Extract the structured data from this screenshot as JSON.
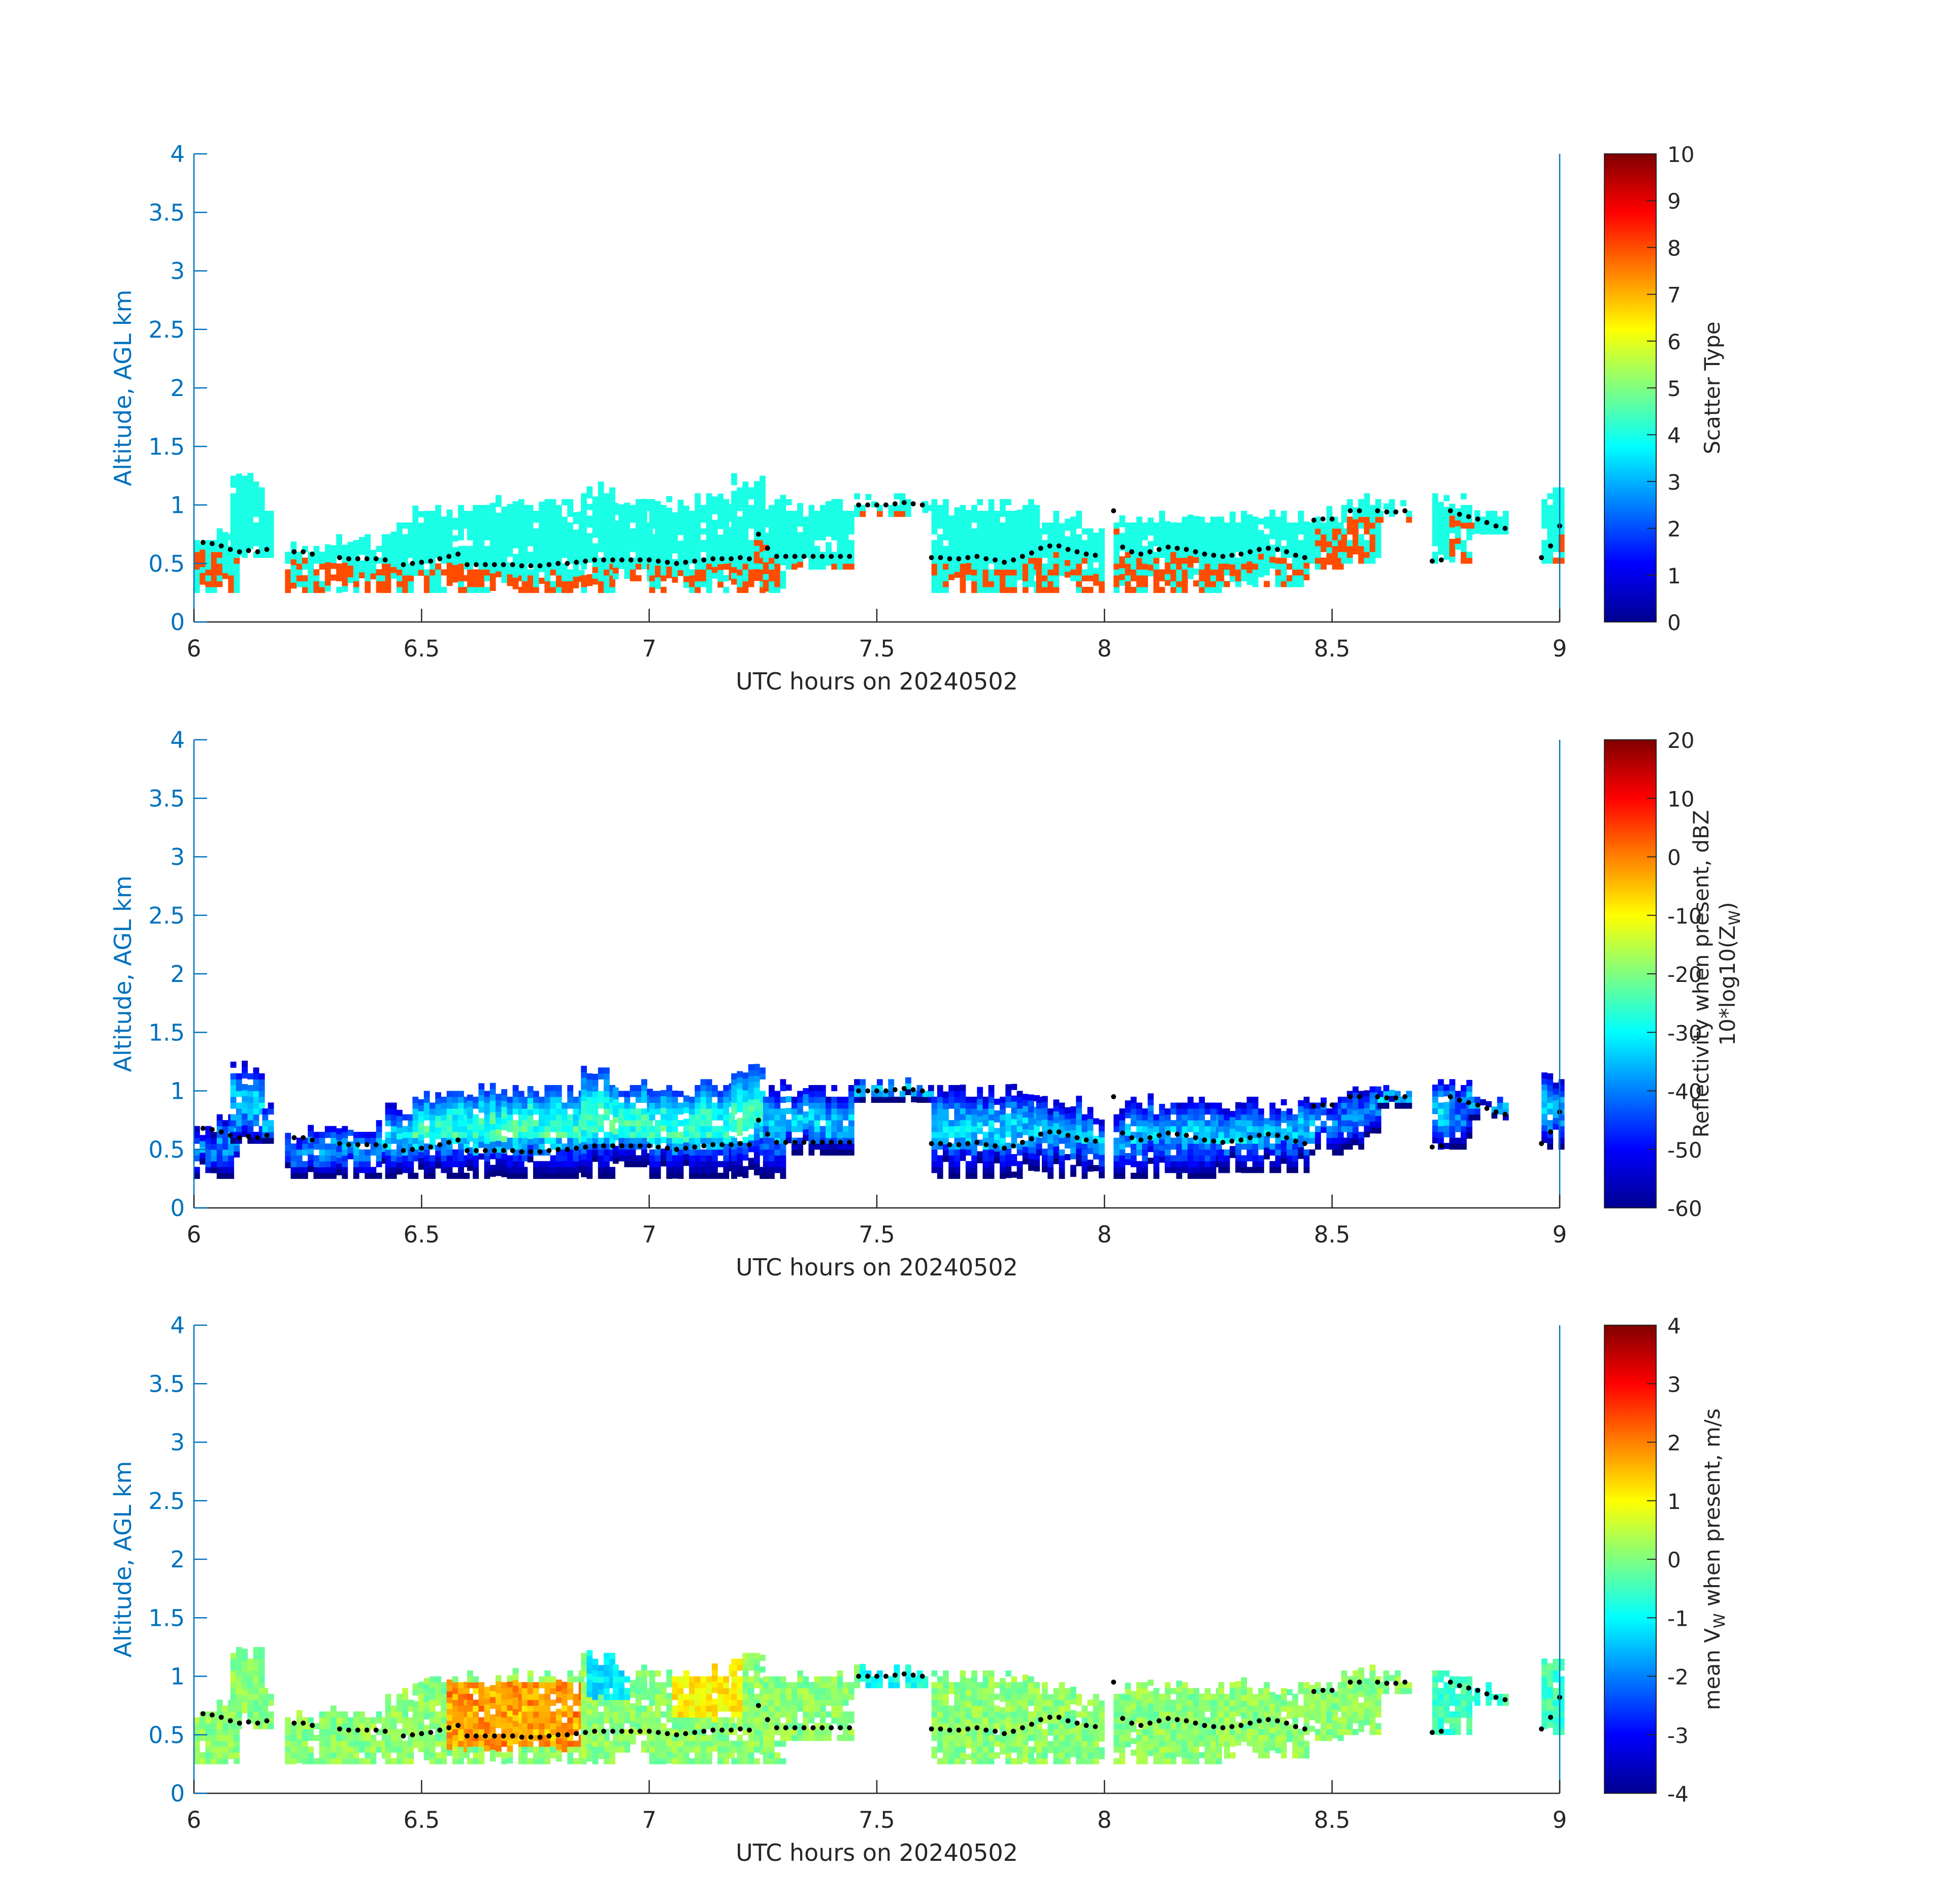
{
  "figure": {
    "background": "#ffffff",
    "axis_color": "#0072bd",
    "colormap": "jet"
  },
  "chart_data": [
    {
      "type": "heatmap",
      "title": "",
      "xlabel": "UTC hours on 20240502",
      "ylabel": "Altitude, AGL km",
      "xlim": [
        6,
        9
      ],
      "ylim": [
        0,
        4
      ],
      "xticks": [
        6,
        6.5,
        7,
        7.5,
        8,
        8.5,
        9
      ],
      "xtick_labels": [
        "6",
        "6.5",
        "7",
        "7.5",
        "8",
        "8.5",
        "9"
      ],
      "yticks": [
        0,
        0.5,
        1,
        1.5,
        2,
        2.5,
        3,
        3.5,
        4
      ],
      "ytick_labels": [
        "0",
        "0.5",
        "1",
        "1.5",
        "2",
        "2.5",
        "3",
        "3.5",
        "4"
      ],
      "colorbar": {
        "label": "Scatter Type",
        "range": [
          0,
          10
        ],
        "ticks": [
          0,
          1,
          2,
          3,
          4,
          5,
          6,
          7,
          8,
          9,
          10
        ],
        "tick_labels": [
          "0",
          "1",
          "2",
          "3",
          "4",
          "5",
          "6",
          "7",
          "8",
          "9",
          "10"
        ]
      },
      "field": "scatter_type",
      "note_values": "cloud body value ~4 (cyan), precipitation/base value ~8 (orange-red)"
    },
    {
      "type": "heatmap",
      "title": "",
      "xlabel": "UTC hours on 20240502",
      "ylabel": "Altitude, AGL km",
      "xlim": [
        6,
        9
      ],
      "ylim": [
        0,
        4
      ],
      "xticks": [
        6,
        6.5,
        7,
        7.5,
        8,
        8.5,
        9
      ],
      "xtick_labels": [
        "6",
        "6.5",
        "7",
        "7.5",
        "8",
        "8.5",
        "9"
      ],
      "yticks": [
        0,
        0.5,
        1,
        1.5,
        2,
        2.5,
        3,
        3.5,
        4
      ],
      "ytick_labels": [
        "0",
        "0.5",
        "1",
        "1.5",
        "2",
        "2.5",
        "3",
        "3.5",
        "4"
      ],
      "colorbar": {
        "label": "Reflectivity when present, dBZ",
        "label2_main": "10*log10(Z",
        "label2_sub": "W",
        "label2_tail": ")",
        "range": [
          -60,
          20
        ],
        "ticks": [
          -60,
          -50,
          -40,
          -30,
          -20,
          -10,
          0,
          10,
          20
        ],
        "tick_labels": [
          "-60",
          "-50",
          "-40",
          "-30",
          "-20",
          "-10",
          "0",
          "10",
          "20"
        ]
      },
      "field": "reflectivity_dbz"
    },
    {
      "type": "heatmap",
      "title": "",
      "xlabel": "UTC hours on 20240502",
      "ylabel": "Altitude, AGL km",
      "xlim": [
        6,
        9
      ],
      "ylim": [
        0,
        4
      ],
      "xticks": [
        6,
        6.5,
        7,
        7.5,
        8,
        8.5,
        9
      ],
      "xtick_labels": [
        "6",
        "6.5",
        "7",
        "7.5",
        "8",
        "8.5",
        "9"
      ],
      "yticks": [
        0,
        0.5,
        1,
        1.5,
        2,
        2.5,
        3,
        3.5,
        4
      ],
      "ytick_labels": [
        "0",
        "0.5",
        "1",
        "1.5",
        "2",
        "2.5",
        "3",
        "3.5",
        "4"
      ],
      "colorbar": {
        "label_main": "mean V",
        "label_sub": "W",
        "label_tail": " when present, m/s",
        "range": [
          -4,
          4
        ],
        "ticks": [
          -4,
          -3,
          -2,
          -1,
          0,
          1,
          2,
          3,
          4
        ],
        "tick_labels": [
          "-4",
          "-3",
          "-2",
          "-1",
          "0",
          "1",
          "2",
          "3",
          "4"
        ]
      },
      "field": "mean_vw"
    }
  ],
  "cloud_base_dots": {
    "description": "black dotted line of cloud base altitude (km) vs UTC hour, same on all panels",
    "points": [
      [
        6.02,
        0.68
      ],
      [
        6.04,
        0.67
      ],
      [
        6.06,
        0.65
      ],
      [
        6.08,
        0.62
      ],
      [
        6.1,
        0.6
      ],
      [
        6.12,
        0.61
      ],
      [
        6.14,
        0.6
      ],
      [
        6.16,
        0.62
      ],
      [
        6.22,
        0.6
      ],
      [
        6.24,
        0.6
      ],
      [
        6.26,
        0.58
      ],
      [
        6.32,
        0.55
      ],
      [
        6.34,
        0.54
      ],
      [
        6.36,
        0.54
      ],
      [
        6.38,
        0.54
      ],
      [
        6.4,
        0.54
      ],
      [
        6.42,
        0.53
      ],
      [
        6.46,
        0.49
      ],
      [
        6.48,
        0.5
      ],
      [
        6.5,
        0.51
      ],
      [
        6.52,
        0.52
      ],
      [
        6.54,
        0.54
      ],
      [
        6.56,
        0.56
      ],
      [
        6.58,
        0.58
      ],
      [
        6.6,
        0.49
      ],
      [
        6.62,
        0.49
      ],
      [
        6.64,
        0.49
      ],
      [
        6.66,
        0.49
      ],
      [
        6.68,
        0.49
      ],
      [
        6.7,
        0.49
      ],
      [
        6.72,
        0.48
      ],
      [
        6.74,
        0.48
      ],
      [
        6.76,
        0.48
      ],
      [
        6.78,
        0.49
      ],
      [
        6.8,
        0.5
      ],
      [
        6.82,
        0.5
      ],
      [
        6.84,
        0.51
      ],
      [
        6.86,
        0.52
      ],
      [
        6.88,
        0.53
      ],
      [
        6.9,
        0.53
      ],
      [
        6.92,
        0.53
      ],
      [
        6.94,
        0.53
      ],
      [
        6.96,
        0.53
      ],
      [
        6.98,
        0.53
      ],
      [
        7.0,
        0.53
      ],
      [
        7.02,
        0.52
      ],
      [
        7.04,
        0.51
      ],
      [
        7.06,
        0.5
      ],
      [
        7.08,
        0.51
      ],
      [
        7.1,
        0.52
      ],
      [
        7.12,
        0.53
      ],
      [
        7.14,
        0.54
      ],
      [
        7.16,
        0.54
      ],
      [
        7.18,
        0.54
      ],
      [
        7.2,
        0.55
      ],
      [
        7.22,
        0.54
      ],
      [
        7.24,
        0.75
      ],
      [
        7.26,
        0.63
      ],
      [
        7.28,
        0.56
      ],
      [
        7.3,
        0.56
      ],
      [
        7.32,
        0.56
      ],
      [
        7.34,
        0.56
      ],
      [
        7.36,
        0.56
      ],
      [
        7.38,
        0.56
      ],
      [
        7.4,
        0.56
      ],
      [
        7.42,
        0.56
      ],
      [
        7.44,
        0.56
      ],
      [
        7.46,
        1.0
      ],
      [
        7.48,
        1.0
      ],
      [
        7.5,
        1.0
      ],
      [
        7.52,
        1.0
      ],
      [
        7.54,
        1.01
      ],
      [
        7.56,
        1.02
      ],
      [
        7.58,
        1.01
      ],
      [
        7.6,
        1.0
      ],
      [
        7.62,
        0.55
      ],
      [
        7.64,
        0.55
      ],
      [
        7.66,
        0.54
      ],
      [
        7.68,
        0.54
      ],
      [
        7.7,
        0.55
      ],
      [
        7.72,
        0.56
      ],
      [
        7.74,
        0.54
      ],
      [
        7.76,
        0.53
      ],
      [
        7.78,
        0.51
      ],
      [
        7.8,
        0.53
      ],
      [
        7.82,
        0.56
      ],
      [
        7.84,
        0.59
      ],
      [
        7.86,
        0.63
      ],
      [
        7.88,
        0.65
      ],
      [
        7.9,
        0.65
      ],
      [
        7.92,
        0.62
      ],
      [
        7.94,
        0.6
      ],
      [
        7.96,
        0.58
      ],
      [
        7.98,
        0.57
      ],
      [
        8.02,
        0.95
      ],
      [
        8.04,
        0.64
      ],
      [
        8.06,
        0.6
      ],
      [
        8.08,
        0.58
      ],
      [
        8.1,
        0.6
      ],
      [
        8.12,
        0.62
      ],
      [
        8.14,
        0.64
      ],
      [
        8.16,
        0.63
      ],
      [
        8.18,
        0.62
      ],
      [
        8.2,
        0.6
      ],
      [
        8.22,
        0.58
      ],
      [
        8.24,
        0.57
      ],
      [
        8.26,
        0.56
      ],
      [
        8.28,
        0.57
      ],
      [
        8.3,
        0.58
      ],
      [
        8.32,
        0.6
      ],
      [
        8.34,
        0.62
      ],
      [
        8.36,
        0.63
      ],
      [
        8.38,
        0.62
      ],
      [
        8.4,
        0.6
      ],
      [
        8.42,
        0.57
      ],
      [
        8.44,
        0.55
      ],
      [
        8.46,
        0.87
      ],
      [
        8.48,
        0.88
      ],
      [
        8.5,
        0.88
      ],
      [
        8.54,
        0.95
      ],
      [
        8.56,
        0.95
      ],
      [
        8.6,
        0.95
      ],
      [
        8.62,
        0.94
      ],
      [
        8.64,
        0.94
      ],
      [
        8.66,
        0.95
      ],
      [
        8.72,
        0.52
      ],
      [
        8.74,
        0.53
      ],
      [
        8.76,
        0.95
      ],
      [
        8.78,
        0.92
      ],
      [
        8.8,
        0.9
      ],
      [
        8.82,
        0.88
      ],
      [
        8.84,
        0.85
      ],
      [
        8.86,
        0.82
      ],
      [
        8.88,
        0.8
      ],
      [
        8.96,
        0.55
      ],
      [
        8.98,
        0.65
      ],
      [
        9.0,
        0.82
      ]
    ]
  },
  "cloud_columns": {
    "description": "approximate echo extent per UTC time bin [x_start, x_end, bottom_km, top_km]",
    "columns": [
      [
        6.0,
        6.05,
        0.25,
        0.75
      ],
      [
        6.05,
        6.1,
        0.25,
        0.85
      ],
      [
        6.08,
        6.15,
        0.55,
        1.25
      ],
      [
        6.15,
        6.17,
        0.55,
        0.95
      ],
      [
        6.2,
        6.3,
        0.25,
        0.7
      ],
      [
        6.3,
        6.42,
        0.25,
        0.75
      ],
      [
        6.42,
        6.48,
        0.25,
        0.88
      ],
      [
        6.48,
        6.6,
        0.25,
        1.0
      ],
      [
        6.6,
        6.72,
        0.25,
        1.05
      ],
      [
        6.72,
        6.85,
        0.25,
        1.05
      ],
      [
        6.85,
        6.92,
        0.25,
        1.2
      ],
      [
        6.92,
        7.0,
        0.35,
        1.1
      ],
      [
        7.0,
        7.1,
        0.25,
        1.05
      ],
      [
        7.1,
        7.18,
        0.25,
        1.1
      ],
      [
        7.18,
        7.25,
        0.25,
        1.25
      ],
      [
        7.25,
        7.3,
        0.25,
        1.1
      ],
      [
        7.3,
        7.45,
        0.45,
        1.05
      ],
      [
        7.45,
        7.62,
        0.9,
        1.1
      ],
      [
        7.62,
        7.72,
        0.25,
        1.05
      ],
      [
        7.72,
        7.85,
        0.25,
        1.05
      ],
      [
        7.85,
        7.95,
        0.25,
        0.95
      ],
      [
        7.95,
        8.0,
        0.25,
        0.85
      ],
      [
        8.02,
        8.12,
        0.25,
        0.95
      ],
      [
        8.12,
        8.25,
        0.25,
        0.95
      ],
      [
        8.25,
        8.35,
        0.3,
        0.95
      ],
      [
        8.35,
        8.45,
        0.3,
        0.95
      ],
      [
        8.45,
        8.52,
        0.45,
        0.95
      ],
      [
        8.52,
        8.6,
        0.5,
        1.1
      ],
      [
        8.6,
        8.67,
        0.85,
        1.05
      ],
      [
        8.72,
        8.8,
        0.5,
        1.1
      ],
      [
        8.8,
        8.88,
        0.75,
        0.95
      ],
      [
        8.96,
        9.0,
        0.5,
        1.15
      ]
    ]
  }
}
